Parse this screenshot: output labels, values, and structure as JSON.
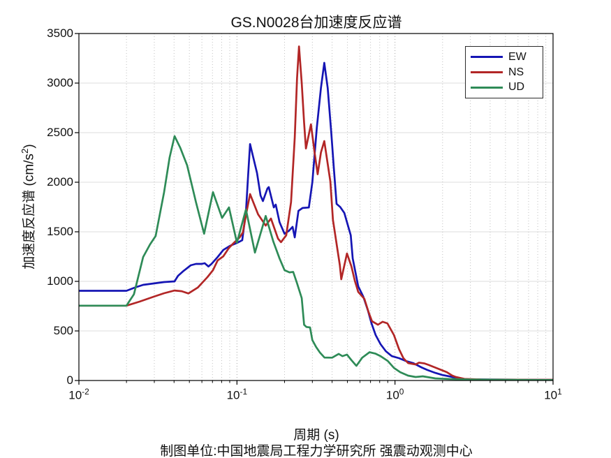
{
  "title": "GS.N0028台加速度反应谱",
  "caption": "制图单位:中国地震局工程力学研究所 强震动观测中心",
  "chart_data": {
    "type": "line",
    "title": "GS.N0028台加速度反应谱",
    "xlabel": "周期 (s)",
    "ylabel": {
      "prefix": "加速度反应谱 (cm/s",
      "sup": "2",
      "suffix": ")"
    },
    "x_scale": "log",
    "xlim": [
      0.01,
      10
    ],
    "ylim": [
      0,
      3500
    ],
    "x_tick_values": [
      0.01,
      0.1,
      1,
      10
    ],
    "x_tick_labels": [
      {
        "base": "10",
        "exp": "-2"
      },
      {
        "base": "10",
        "exp": "-1"
      },
      {
        "base": "10",
        "exp": "0"
      },
      {
        "base": "10",
        "exp": "1"
      }
    ],
    "y_ticks": [
      "0",
      "500",
      "1000",
      "1500",
      "2000",
      "2500",
      "3000",
      "3500"
    ],
    "grid": "dotted vertical log gridlines (major+minor), light horizontal gridlines every 500",
    "legend_position": "top-right inset box",
    "units": "cm/s2 vs s",
    "series": [
      {
        "name": "EW",
        "color": "#1515b4",
        "points": [
          [
            0.01,
            905
          ],
          [
            0.02,
            905
          ],
          [
            0.0226,
            937
          ],
          [
            0.0255,
            965
          ],
          [
            0.0297,
            979
          ],
          [
            0.0346,
            993
          ],
          [
            0.0403,
            1000
          ],
          [
            0.0424,
            1056
          ],
          [
            0.046,
            1106
          ],
          [
            0.051,
            1162
          ],
          [
            0.055,
            1176
          ],
          [
            0.06,
            1176
          ],
          [
            0.0625,
            1183
          ],
          [
            0.066,
            1150
          ],
          [
            0.069,
            1176
          ],
          [
            0.0755,
            1246
          ],
          [
            0.082,
            1317
          ],
          [
            0.0905,
            1359
          ],
          [
            0.1,
            1387
          ],
          [
            0.108,
            1415
          ],
          [
            0.114,
            1700
          ],
          [
            0.118,
            2100
          ],
          [
            0.121,
            2385
          ],
          [
            0.134,
            2092
          ],
          [
            0.141,
            1866
          ],
          [
            0.146,
            1810
          ],
          [
            0.156,
            1937
          ],
          [
            0.159,
            1951
          ],
          [
            0.171,
            1746
          ],
          [
            0.176,
            1774
          ],
          [
            0.186,
            1598
          ],
          [
            0.19,
            1563
          ],
          [
            0.2,
            1480
          ],
          [
            0.213,
            1510
          ],
          [
            0.225,
            1550
          ],
          [
            0.232,
            1444
          ],
          [
            0.245,
            1711
          ],
          [
            0.26,
            1740
          ],
          [
            0.285,
            1745
          ],
          [
            0.3,
            2000
          ],
          [
            0.32,
            2550
          ],
          [
            0.34,
            2950
          ],
          [
            0.357,
            3204
          ],
          [
            0.375,
            2950
          ],
          [
            0.395,
            2500
          ],
          [
            0.41,
            2150
          ],
          [
            0.427,
            1782
          ],
          [
            0.45,
            1750
          ],
          [
            0.478,
            1690
          ],
          [
            0.525,
            1465
          ],
          [
            0.54,
            1232
          ],
          [
            0.585,
            950
          ],
          [
            0.63,
            845
          ],
          [
            0.675,
            704
          ],
          [
            0.71,
            577
          ],
          [
            0.755,
            458
          ],
          [
            0.81,
            366
          ],
          [
            0.875,
            296
          ],
          [
            0.955,
            246
          ],
          [
            1.06,
            225
          ],
          [
            1.17,
            197
          ],
          [
            1.3,
            176
          ],
          [
            1.48,
            130
          ],
          [
            1.6,
            106
          ],
          [
            1.8,
            77
          ],
          [
            2.0,
            55
          ],
          [
            2.2,
            42
          ],
          [
            2.55,
            20
          ],
          [
            2.8,
            13
          ],
          [
            3.9,
            10
          ],
          [
            6.0,
            8
          ],
          [
            10.0,
            6
          ]
        ]
      },
      {
        "name": "NS",
        "color": "#b22626",
        "points": [
          [
            0.01,
            755
          ],
          [
            0.02,
            755
          ],
          [
            0.0242,
            796
          ],
          [
            0.0297,
            845
          ],
          [
            0.0346,
            880
          ],
          [
            0.0403,
            908
          ],
          [
            0.0447,
            901
          ],
          [
            0.0493,
            878
          ],
          [
            0.0565,
            937
          ],
          [
            0.0603,
            986
          ],
          [
            0.065,
            1042
          ],
          [
            0.0705,
            1113
          ],
          [
            0.0755,
            1211
          ],
          [
            0.082,
            1253
          ],
          [
            0.089,
            1338
          ],
          [
            0.0955,
            1387
          ],
          [
            0.104,
            1444
          ],
          [
            0.109,
            1493
          ],
          [
            0.115,
            1700
          ],
          [
            0.121,
            1880
          ],
          [
            0.136,
            1676
          ],
          [
            0.146,
            1605
          ],
          [
            0.152,
            1563
          ],
          [
            0.164,
            1634
          ],
          [
            0.182,
            1430
          ],
          [
            0.19,
            1395
          ],
          [
            0.205,
            1465
          ],
          [
            0.22,
            1800
          ],
          [
            0.232,
            2450
          ],
          [
            0.24,
            3050
          ],
          [
            0.247,
            3370
          ],
          [
            0.257,
            3000
          ],
          [
            0.266,
            2600
          ],
          [
            0.273,
            2340
          ],
          [
            0.294,
            2584
          ],
          [
            0.31,
            2300
          ],
          [
            0.324,
            2080
          ],
          [
            0.34,
            2300
          ],
          [
            0.357,
            2415
          ],
          [
            0.39,
            2007
          ],
          [
            0.405,
            1620
          ],
          [
            0.448,
            1162
          ],
          [
            0.457,
            1021
          ],
          [
            0.497,
            1281
          ],
          [
            0.53,
            1150
          ],
          [
            0.557,
            1007
          ],
          [
            0.585,
            894
          ],
          [
            0.64,
            824
          ],
          [
            0.68,
            690
          ],
          [
            0.715,
            598
          ],
          [
            0.78,
            563
          ],
          [
            0.835,
            592
          ],
          [
            0.895,
            577
          ],
          [
            0.985,
            458
          ],
          [
            1.06,
            317
          ],
          [
            1.13,
            225
          ],
          [
            1.21,
            176
          ],
          [
            1.35,
            162
          ],
          [
            1.42,
            180
          ],
          [
            1.54,
            172
          ],
          [
            1.63,
            158
          ],
          [
            1.87,
            120
          ],
          [
            2.13,
            84
          ],
          [
            2.3,
            50
          ],
          [
            2.43,
            35
          ],
          [
            2.75,
            16
          ],
          [
            3.5,
            10
          ],
          [
            6.0,
            8
          ],
          [
            10.0,
            7
          ]
        ]
      },
      {
        "name": "UD",
        "color": "#2e8b57",
        "points": [
          [
            0.01,
            755
          ],
          [
            0.02,
            755
          ],
          [
            0.0223,
            870
          ],
          [
            0.0255,
            1246
          ],
          [
            0.0282,
            1373
          ],
          [
            0.0306,
            1458
          ],
          [
            0.0346,
            1900
          ],
          [
            0.0375,
            2250
          ],
          [
            0.0403,
            2465
          ],
          [
            0.0437,
            2350
          ],
          [
            0.0484,
            2170
          ],
          [
            0.055,
            1800
          ],
          [
            0.062,
            1480
          ],
          [
            0.0705,
            1900
          ],
          [
            0.0805,
            1640
          ],
          [
            0.089,
            1746
          ],
          [
            0.1,
            1390
          ],
          [
            0.114,
            1725
          ],
          [
            0.13,
            1290
          ],
          [
            0.152,
            1660
          ],
          [
            0.17,
            1400
          ],
          [
            0.186,
            1232
          ],
          [
            0.2,
            1113
          ],
          [
            0.215,
            1091
          ],
          [
            0.227,
            1095
          ],
          [
            0.24,
            980
          ],
          [
            0.257,
            831
          ],
          [
            0.266,
            563
          ],
          [
            0.275,
            540
          ],
          [
            0.29,
            535
          ],
          [
            0.3,
            408
          ],
          [
            0.317,
            338
          ],
          [
            0.335,
            282
          ],
          [
            0.358,
            232
          ],
          [
            0.4,
            230
          ],
          [
            0.44,
            268
          ],
          [
            0.465,
            246
          ],
          [
            0.497,
            261
          ],
          [
            0.53,
            205
          ],
          [
            0.57,
            148
          ],
          [
            0.62,
            230
          ],
          [
            0.69,
            285
          ],
          [
            0.75,
            272
          ],
          [
            0.81,
            246
          ],
          [
            0.9,
            197
          ],
          [
            0.985,
            127
          ],
          [
            1.08,
            84
          ],
          [
            1.21,
            49
          ],
          [
            1.35,
            35
          ],
          [
            1.5,
            42
          ],
          [
            1.8,
            21
          ],
          [
            2.2,
            15
          ],
          [
            3.0,
            10
          ],
          [
            5.0,
            7
          ],
          [
            10.0,
            4
          ]
        ]
      }
    ]
  }
}
